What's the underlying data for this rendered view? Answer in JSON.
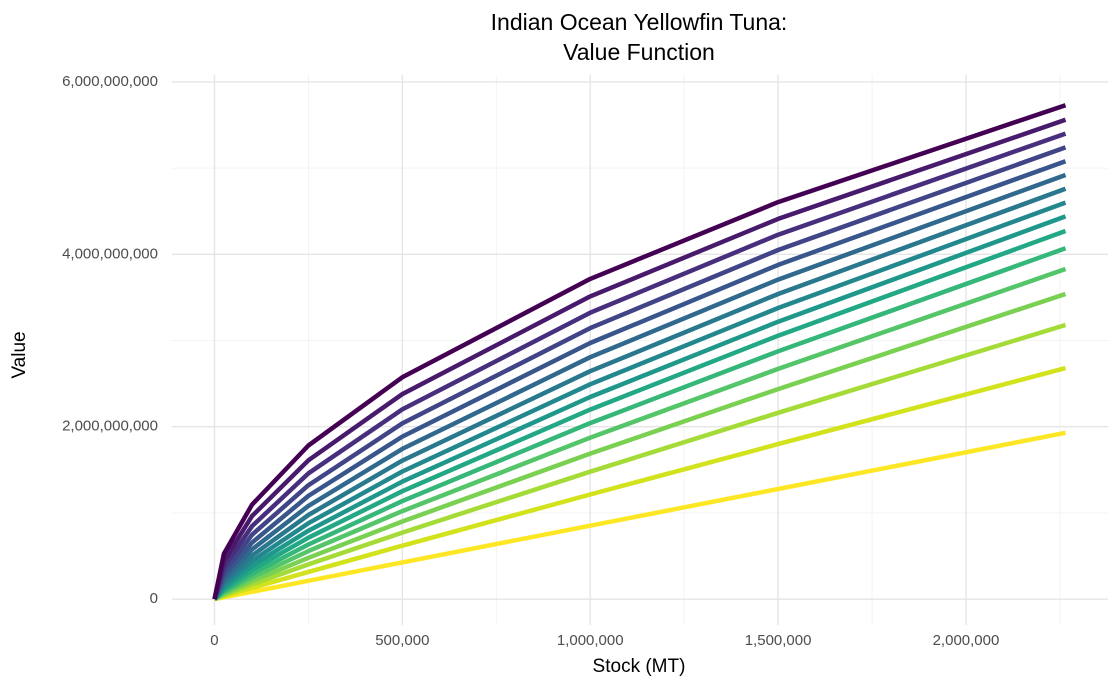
{
  "chart_data": {
    "type": "line",
    "title": [
      "Indian Ocean Yellowfin Tuna:",
      "Value Function"
    ],
    "x_label": "Stock (MT)",
    "y_label": "Value",
    "x": [
      0,
      25000,
      100000,
      250000,
      500000,
      1000000,
      1500000,
      2265000
    ],
    "series": [
      {
        "color": "#fde725",
        "values": [
          0,
          21300000,
          85200000,
          213000000,
          426000000,
          852000000,
          1278000000,
          1930000000
        ]
      },
      {
        "color": "#d2e21b",
        "values": [
          0,
          34100000,
          130400000,
          316500000,
          620000000,
          1214000000,
          1798000000,
          2680000000
        ]
      },
      {
        "color": "#a5db36",
        "values": [
          0,
          46700000,
          171000000,
          403000000,
          772000000,
          1478000000,
          2161000000,
          3180000000
        ]
      },
      {
        "color": "#7ad151",
        "values": [
          0,
          59700000,
          209500000,
          480000000,
          901000000,
          1688000000,
          2437000000,
          3540000000
        ]
      },
      {
        "color": "#54c568",
        "values": [
          0,
          74300000,
          249800000,
          557000000,
          1021000000,
          1873000000,
          2671000000,
          3830000000
        ]
      },
      {
        "color": "#35b779",
        "values": [
          0,
          90800000,
          292500000,
          634000000,
          1137000000,
          2042000000,
          2875000000,
          4070000000
        ]
      },
      {
        "color": "#22a884",
        "values": [
          0,
          110000000,
          339000000,
          713000000,
          1252000000,
          2199000000,
          3056000000,
          4270000000
        ]
      },
      {
        "color": "#1f988b",
        "values": [
          0,
          131600000,
          388000000,
          794000000,
          1364000000,
          2345000000,
          3218000000,
          4440000000
        ]
      },
      {
        "color": "#23888e",
        "values": [
          0,
          156700000,
          443000000,
          881000000,
          1481000000,
          2492000000,
          3377000000,
          4600000000
        ]
      },
      {
        "color": "#2a788e",
        "values": [
          0,
          186400000,
          505000000,
          976000000,
          1607000000,
          2644000000,
          3540000000,
          4760000000
        ]
      },
      {
        "color": "#31688e",
        "values": [
          0,
          222600000,
          577000000,
          1082000000,
          1743000000,
          2806000000,
          3707000000,
          4920000000
        ]
      },
      {
        "color": "#39568c",
        "values": [
          0,
          264300000,
          656000000,
          1197000000,
          1886000000,
          2971000000,
          3877000000,
          5080000000
        ]
      },
      {
        "color": "#414487",
        "values": [
          0,
          313600000,
          746000000,
          1322000000,
          2038000000,
          3144000000,
          4050000000,
          5240000000
        ]
      },
      {
        "color": "#472f7d",
        "values": [
          0,
          371500000,
          846000000,
          1458000000,
          2201000000,
          3323000000,
          4228000000,
          5400000000
        ]
      },
      {
        "color": "#481a6c",
        "values": [
          0,
          441900000,
          963000000,
          1611000000,
          2379000000,
          3512000000,
          4411000000,
          5560000000
        ]
      },
      {
        "color": "#440154",
        "values": [
          0,
          526000000,
          1096000000,
          1782000000,
          2573000000,
          3715000000,
          4606000000,
          5730000000
        ]
      }
    ],
    "xlim": [
      -113000,
      2378000
    ],
    "ylim": [
      -300000000,
      6080000000
    ],
    "xticks": [
      0,
      {
        "value": 500000,
        "label": "500,000"
      },
      {
        "value": 1000000,
        "label": "1,000,000"
      },
      {
        "value": 1500000,
        "label": "1,500,000"
      },
      {
        "value": 2000000,
        "label": "2,000,000"
      }
    ],
    "yticks": [
      0,
      {
        "value": 2000000000,
        "label": "2,000,000,000"
      },
      {
        "value": 4000000000,
        "label": "4,000,000,000"
      },
      {
        "value": 6000000000,
        "label": "6,000,000,000"
      }
    ],
    "xminor": [
      250000,
      750000,
      1250000,
      1750000,
      2250000
    ],
    "yminor": [
      1000000000,
      3000000000,
      5000000000
    ],
    "grid": true
  }
}
